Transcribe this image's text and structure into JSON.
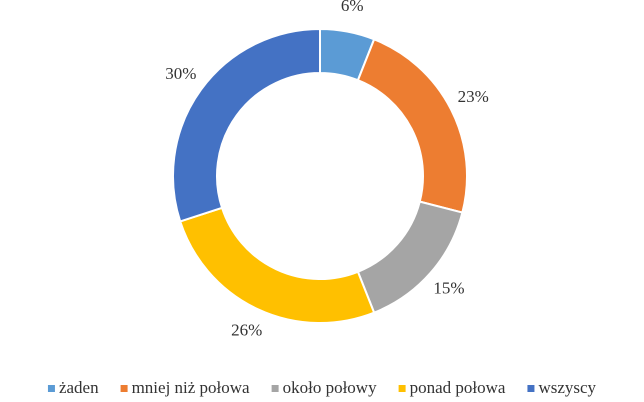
{
  "chart_data": {
    "type": "donut",
    "categories": [
      "żaden",
      "mniej niż połowa",
      "około połowy",
      "ponad połowa",
      "wszyscy"
    ],
    "values": [
      6,
      23,
      15,
      26,
      30
    ],
    "value_labels": [
      "6%",
      "23%",
      "15%",
      "26%",
      "30%"
    ],
    "colors": [
      "#5b9bd5",
      "#ed7d31",
      "#a5a5a5",
      "#ffc000",
      "#4472c4"
    ],
    "legend": "bottom"
  }
}
